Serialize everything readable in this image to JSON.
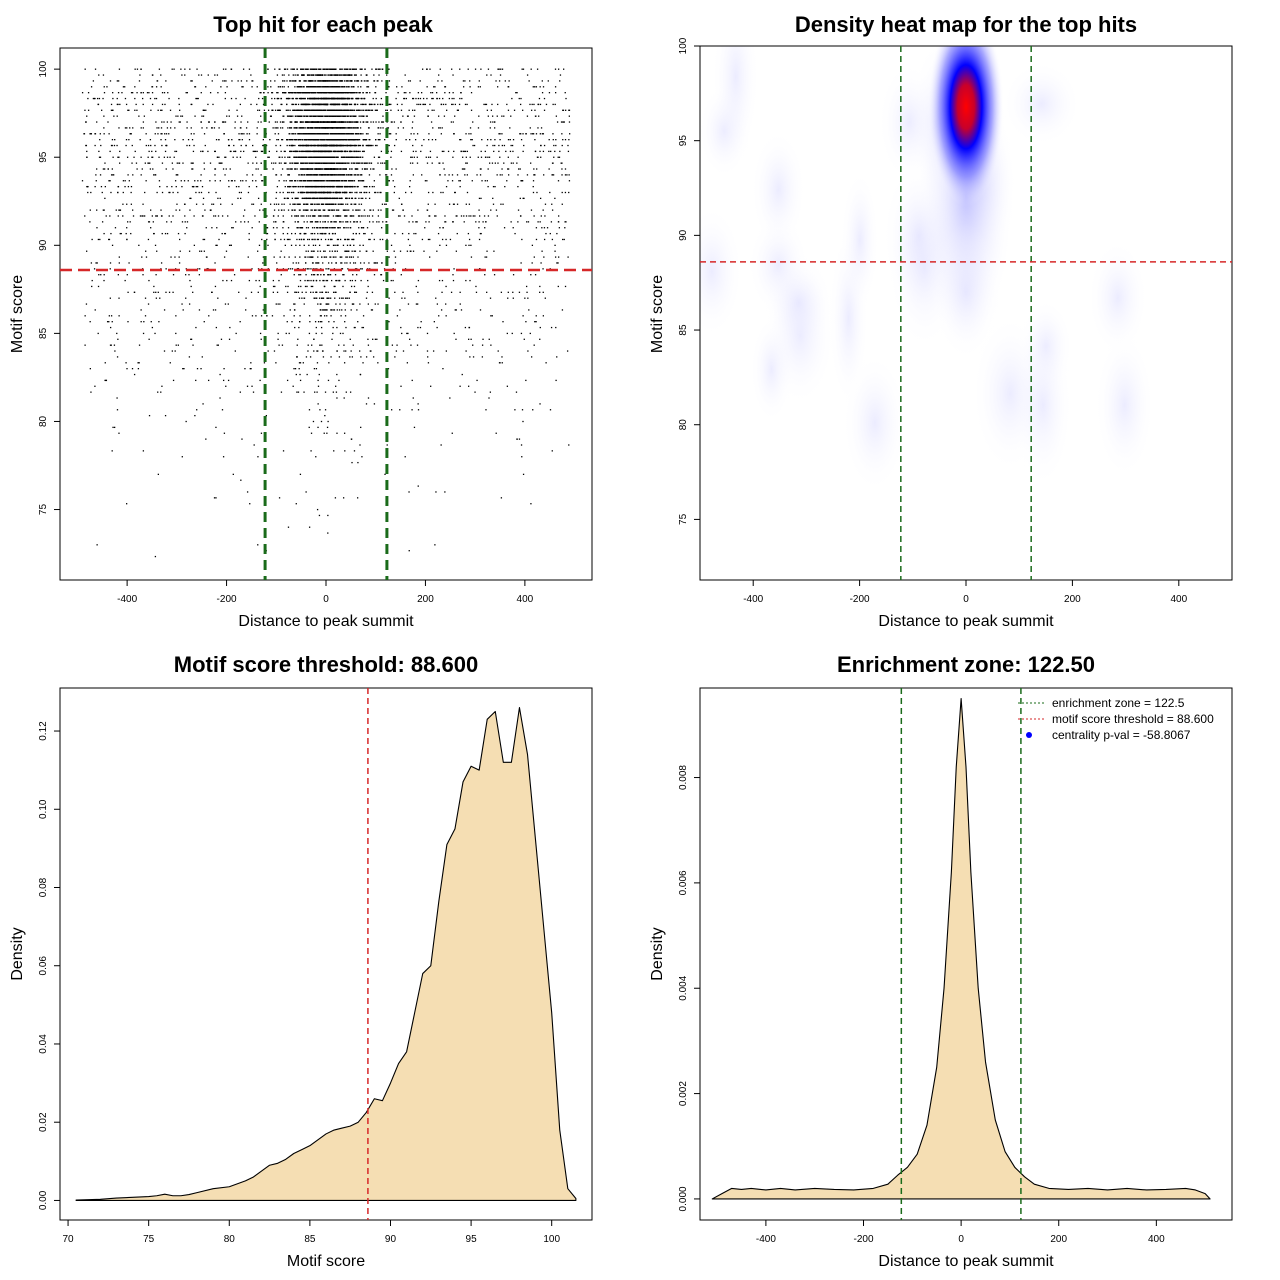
{
  "colors": {
    "threshold_line": "#d62728",
    "zone_line": "#1a6b1a",
    "density_fill": "#f5deb3",
    "points": "#000000",
    "heat_low": "#ffffff",
    "heat_mid": "#0000ff",
    "heat_high": "#ff0000",
    "legend_point": "#0000ff"
  },
  "chart_data": [
    {
      "type": "scatter",
      "title": "Top hit for each peak",
      "xlabel": "Distance to peak summit",
      "ylabel": "Motif score",
      "xlim": [
        -535,
        535
      ],
      "ylim": [
        71,
        101.2
      ],
      "xticks": [
        -400,
        -200,
        0,
        200,
        400
      ],
      "yticks": [
        75,
        80,
        85,
        90,
        95,
        100
      ],
      "xtick_labels": [
        "-400",
        "-200",
        "0",
        "200",
        "400"
      ],
      "ytick_labels": [
        "75",
        "80",
        "85",
        "90",
        "95",
        "100"
      ],
      "threshold": 88.6,
      "zone": [
        -122.5,
        122.5
      ]
    },
    {
      "type": "heatmap",
      "title": "Density heat map for the top hits",
      "xlabel": "Distance to peak summit",
      "ylabel": "Motif score",
      "xlim": [
        -500,
        500
      ],
      "ylim": [
        71.8,
        100
      ],
      "xticks": [
        -400,
        -200,
        0,
        200,
        400
      ],
      "yticks": [
        75,
        80,
        85,
        90,
        95,
        100
      ],
      "xtick_labels": [
        "-400",
        "-200",
        "0",
        "200",
        "400"
      ],
      "ytick_labels": [
        "75",
        "80",
        "85",
        "90",
        "95",
        "100"
      ],
      "threshold": 88.6,
      "zone": [
        -122.5,
        122.5
      ],
      "peak": {
        "x": 0,
        "y": 97
      }
    },
    {
      "type": "area",
      "title": "Motif score threshold: 88.600",
      "xlabel": "Motif score",
      "ylabel": "Density",
      "xlim": [
        69.5,
        102.5
      ],
      "ylim": [
        -0.005,
        0.131
      ],
      "xticks": [
        70,
        75,
        80,
        85,
        90,
        95,
        100
      ],
      "yticks": [
        0,
        0.02,
        0.04,
        0.06,
        0.08,
        0.1,
        0.12
      ],
      "xtick_labels": [
        "70",
        "75",
        "80",
        "85",
        "90",
        "95",
        "100"
      ],
      "ytick_labels": [
        "0.00",
        "0.02",
        "0.04",
        "0.06",
        "0.08",
        "0.10",
        "0.12"
      ],
      "threshold": 88.6,
      "x": [
        70.5,
        72,
        73,
        74,
        75,
        75.5,
        76,
        76.5,
        77,
        77.5,
        78,
        79,
        80,
        81,
        81.5,
        82,
        82.5,
        83,
        83.5,
        84,
        84.5,
        85,
        85.5,
        86,
        86.5,
        87,
        87.5,
        88,
        88.5,
        89,
        89.5,
        90,
        90.5,
        91,
        91.5,
        92,
        92.5,
        93,
        93.5,
        94,
        94.5,
        95,
        95.5,
        96,
        96.5,
        97,
        97.5,
        98,
        98.5,
        99,
        99.5,
        100,
        100.5,
        101,
        101.5
      ],
      "y": [
        0.0001,
        0.0003,
        0.0006,
        0.0008,
        0.001,
        0.0012,
        0.0016,
        0.0012,
        0.0012,
        0.0015,
        0.002,
        0.003,
        0.0035,
        0.005,
        0.006,
        0.0075,
        0.009,
        0.0095,
        0.0105,
        0.012,
        0.013,
        0.014,
        0.0155,
        0.017,
        0.018,
        0.0185,
        0.019,
        0.02,
        0.0225,
        0.026,
        0.0255,
        0.03,
        0.035,
        0.038,
        0.048,
        0.058,
        0.06,
        0.0765,
        0.091,
        0.095,
        0.107,
        0.111,
        0.11,
        0.123,
        0.125,
        0.112,
        0.112,
        0.126,
        0.114,
        0.092,
        0.07,
        0.048,
        0.018,
        0.003,
        0.0005
      ]
    },
    {
      "type": "area",
      "title": "Enrichment zone: 122.50",
      "xlabel": "Distance to peak summit",
      "ylabel": "Density",
      "xlim": [
        -535,
        555
      ],
      "ylim": [
        -0.0004,
        0.0097
      ],
      "xticks": [
        -400,
        -200,
        0,
        200,
        400
      ],
      "yticks": [
        0,
        0.002,
        0.004,
        0.006,
        0.008
      ],
      "xtick_labels": [
        "-400",
        "-200",
        "0",
        "200",
        "400"
      ],
      "ytick_labels": [
        "0.000",
        "0.002",
        "0.004",
        "0.006",
        "0.008"
      ],
      "zone": [
        -122.5,
        122.5
      ],
      "x": [
        -510,
        -490,
        -470,
        -450,
        -430,
        -400,
        -370,
        -340,
        -300,
        -260,
        -220,
        -180,
        -150,
        -130,
        -110,
        -90,
        -70,
        -50,
        -35,
        -20,
        -10,
        0,
        10,
        20,
        35,
        50,
        70,
        90,
        110,
        130,
        150,
        180,
        220,
        260,
        300,
        340,
        380,
        420,
        460,
        480,
        500,
        510
      ],
      "y": [
        0.0,
        0.0001,
        0.0002,
        0.00018,
        0.0002,
        0.00017,
        0.0002,
        0.00017,
        0.0002,
        0.00018,
        0.00017,
        0.0002,
        0.00028,
        0.00045,
        0.0006,
        0.00085,
        0.0014,
        0.0025,
        0.004,
        0.0062,
        0.0082,
        0.0095,
        0.0082,
        0.0062,
        0.004,
        0.0026,
        0.0015,
        0.0009,
        0.0006,
        0.00042,
        0.00028,
        0.0002,
        0.00018,
        0.0002,
        0.00017,
        0.0002,
        0.00017,
        0.00018,
        0.0002,
        0.00017,
        0.0001,
        0.0
      ],
      "legend": [
        {
          "text": "enrichment zone = 122.5"
        },
        {
          "text": "motif score threshold = 88.600"
        },
        {
          "text": "centrality p-val = -58.8067"
        }
      ]
    }
  ]
}
